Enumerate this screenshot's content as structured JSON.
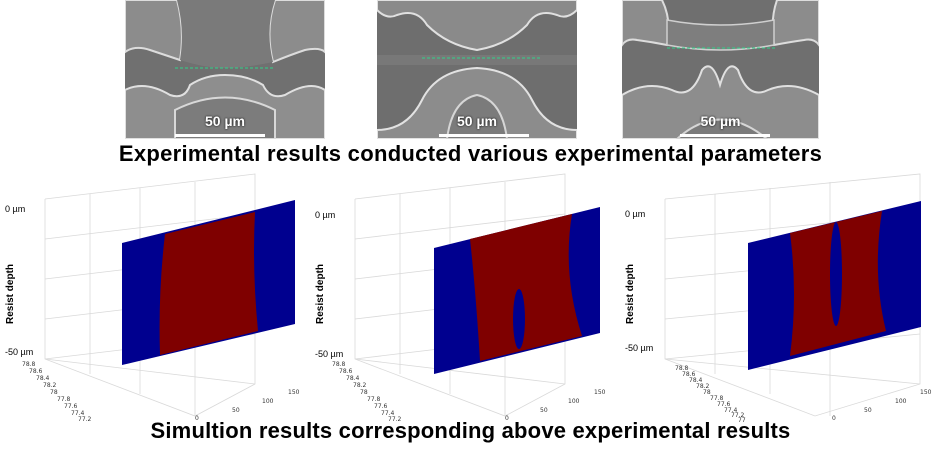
{
  "captions": {
    "top": "Experimental results conducted various experimental parameters",
    "bottom": "Simultion results corresponding above experimental results"
  },
  "sem_images": [
    {
      "scale_label": "50 µm",
      "pattern": "narrow-neck"
    },
    {
      "scale_label": "50 µm",
      "pattern": "wide-arch"
    },
    {
      "scale_label": "50 µm",
      "pattern": "split-neck"
    }
  ],
  "colors": {
    "resist_blue": "#00008f",
    "resist_red": "#7f0000",
    "guide_line": "#2fd28a",
    "sem_gray": "#6b6b6b"
  },
  "plots": [
    {
      "ylabel": "Resist depth",
      "ytick_top": "0 µm",
      "ytick_bottom": "-50 µm",
      "x_ticks": [
        "78.8",
        "78.6",
        "78.4",
        "78.2",
        "78",
        "77.8",
        "77.6",
        "77.4",
        "77.2"
      ],
      "z_ticks": [
        "0",
        "50",
        "100",
        "150"
      ],
      "hole": null
    },
    {
      "ylabel": "Resist depth",
      "ytick_top": "0 µm",
      "ytick_bottom": "-50 µm",
      "x_ticks": [
        "78.8",
        "78.6",
        "78.4",
        "78.2",
        "78",
        "77.8",
        "77.6",
        "77.4",
        "77.2"
      ],
      "z_ticks": [
        "0",
        "50",
        "100",
        "150"
      ],
      "hole": "bottom"
    },
    {
      "ylabel": "Resist depth",
      "ytick_top": "0 µm",
      "ytick_bottom": "-50 µm",
      "x_ticks": [
        "78.8",
        "78.6",
        "78.4",
        "78.2",
        "78",
        "77.8",
        "77.6",
        "77.4",
        "77.2",
        "77"
      ],
      "z_ticks": [
        "0",
        "50",
        "100",
        "150"
      ],
      "hole": "middle"
    }
  ]
}
